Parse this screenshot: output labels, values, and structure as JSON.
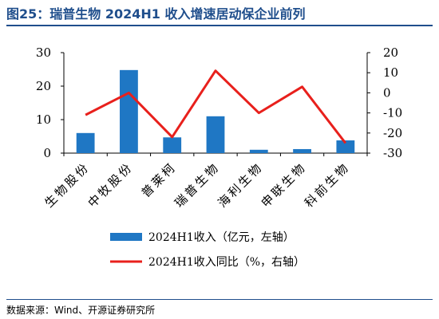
{
  "header": {
    "title": "图25：瑞普生物 2024H1 收入增速居动保企业前列"
  },
  "footer": {
    "source": "数据来源：Wind、开源证券研究所"
  },
  "colors": {
    "bar": "#1f77c4",
    "line": "#e8201c",
    "title": "#1f4e8c"
  },
  "chart_data": {
    "type": "bar",
    "categories": [
      "生物股份",
      "中牧股份",
      "普莱柯",
      "瑞普生物",
      "海利生物",
      "申联生物",
      "科前生物"
    ],
    "series": [
      {
        "name": "2024H1收入（亿元，左轴）",
        "type": "bar",
        "axis": "left",
        "values": [
          6.0,
          24.8,
          4.7,
          11.0,
          1.0,
          1.2,
          3.8
        ]
      },
      {
        "name": "2024H1收入同比（%，右轴）",
        "type": "line",
        "axis": "right",
        "values": [
          -11,
          0,
          -22,
          11,
          -10,
          3,
          -25
        ]
      }
    ],
    "y_left": {
      "lim": [
        0,
        30
      ],
      "ticks": [
        "0",
        "10",
        "20",
        "30"
      ]
    },
    "y_right": {
      "lim": [
        -30,
        20
      ],
      "ticks": [
        "-30",
        "-20",
        "-10",
        "0",
        "10",
        "20"
      ]
    },
    "legend_position": "bottom",
    "grid": false
  }
}
